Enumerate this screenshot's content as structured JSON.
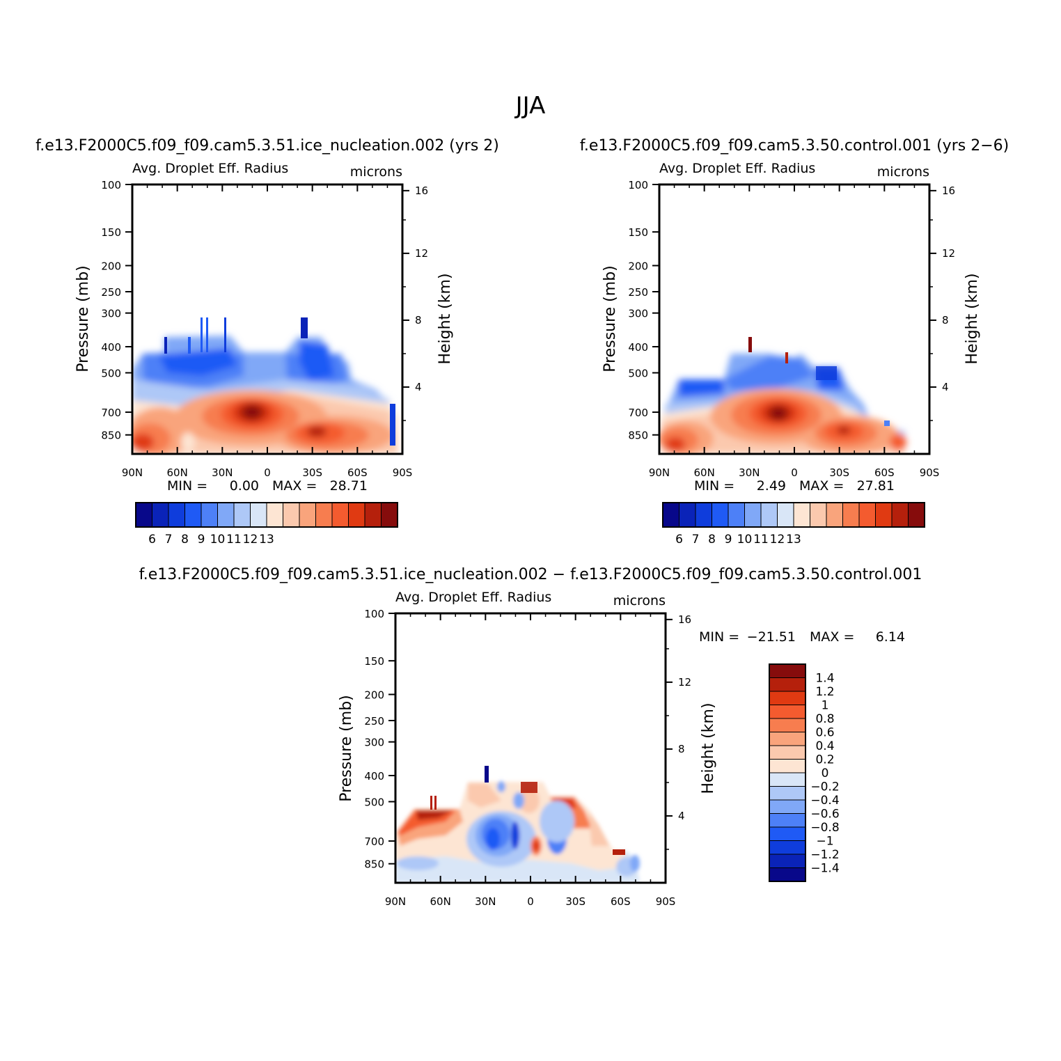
{
  "figure": {
    "season_title": "JJA"
  },
  "chart_data": [
    {
      "type": "heatmap",
      "case_title": "f.e13.F2000C5.f09_f09.cam5.3.51.ice_nucleation.002 (yrs 2)",
      "title": "Avg. Droplet Eff. Radius",
      "units": "microns",
      "ylabel": "Pressure (mb)",
      "ylabel_right": "Height (km)",
      "x_ticks": [
        "90N",
        "60N",
        "30N",
        "0",
        "30S",
        "60S",
        "90S"
      ],
      "y_ticks": [
        100,
        150,
        200,
        250,
        300,
        400,
        500,
        700,
        850
      ],
      "y_ticks_right": [
        4,
        8,
        12,
        16
      ],
      "min_label": "MIN =",
      "min_value": "0.00",
      "max_label": "MAX =",
      "max_value": "28.71",
      "colorbar_labels": [
        "6",
        "7",
        "8",
        "9",
        "10",
        "11",
        "12",
        "13"
      ]
    },
    {
      "type": "heatmap",
      "case_title": "f.e13.F2000C5.f09_f09.cam5.3.50.control.001 (yrs 2-6)",
      "title": "Avg. Droplet Eff. Radius",
      "units": "microns",
      "ylabel": "Pressure (mb)",
      "ylabel_right": "Height (km)",
      "x_ticks": [
        "90N",
        "60N",
        "30N",
        "0",
        "30S",
        "60S",
        "90S"
      ],
      "y_ticks": [
        100,
        150,
        200,
        250,
        300,
        400,
        500,
        700,
        850
      ],
      "y_ticks_right": [
        4,
        8,
        12,
        16
      ],
      "min_label": "MIN =",
      "min_value": "2.49",
      "max_label": "MAX =",
      "max_value": "27.81",
      "colorbar_labels": [
        "6",
        "7",
        "8",
        "9",
        "10",
        "11",
        "12",
        "13"
      ]
    },
    {
      "type": "heatmap",
      "case_title": "f.e13.F2000C5.f09_f09.cam5.3.51.ice_nucleation.002 - f.e13.F2000C5.f09_f09.cam5.3.50.control.001",
      "title": "Avg. Droplet Eff. Radius",
      "units": "microns",
      "ylabel": "Pressure (mb)",
      "ylabel_right": "Height (km)",
      "x_ticks": [
        "90N",
        "60N",
        "30N",
        "0",
        "30S",
        "60S",
        "90S"
      ],
      "y_ticks": [
        100,
        150,
        200,
        250,
        300,
        400,
        500,
        700,
        850
      ],
      "y_ticks_right": [
        4,
        8,
        12,
        16
      ],
      "min_label": "MIN =",
      "min_value": "-21.51",
      "max_label": "MAX =",
      "max_value": "6.14",
      "colorbar_labels": [
        "1.4",
        "1.2",
        "1",
        "0.8",
        "0.6",
        "0.4",
        "0.2",
        "0",
        "-0.2",
        "-0.4",
        "-0.6",
        "-0.8",
        "-1",
        "-1.2",
        "-1.4"
      ]
    }
  ],
  "colors": {
    "scale16": [
      "#08088a",
      "#0a23b8",
      "#0f3ddc",
      "#1f5af5",
      "#4d80f7",
      "#80a8f7",
      "#aec8f7",
      "#d9e6f7",
      "#fde5d3",
      "#fbc9ae",
      "#f9a47c",
      "#f77d4f",
      "#f45b2f",
      "#e03a12",
      "#b5200c",
      "#860c0c"
    ]
  }
}
